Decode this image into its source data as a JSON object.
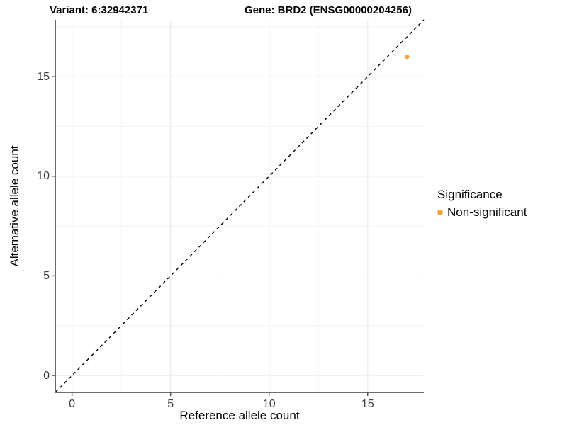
{
  "title": {
    "left": "Variant: 6:32942371",
    "right": "Gene: BRD2 (ENSG00000204256)"
  },
  "chart_data": {
    "type": "scatter",
    "xlabel": "Reference allele count",
    "ylabel": "Alternative allele count",
    "xlim": [
      -0.85,
      17.85
    ],
    "ylim": [
      -0.85,
      17.85
    ],
    "xticks": [
      0,
      5,
      10,
      15
    ],
    "yticks": [
      0,
      5,
      10,
      15
    ],
    "minor_ticks_x": [
      2.5,
      7.5,
      12.5,
      17.5
    ],
    "minor_ticks_y": [
      2.5,
      7.5,
      12.5,
      17.5
    ],
    "grid": true,
    "points": [
      {
        "x": 17,
        "y": 16,
        "series": "Non-significant"
      }
    ],
    "reference_line": {
      "type": "identity y=x",
      "style": "dashed",
      "color": "#000000"
    },
    "legend": {
      "title": "Significance",
      "position": "right",
      "items": [
        {
          "label": "Non-significant",
          "color": "#FAA43A"
        }
      ]
    },
    "colors": {
      "point": "#FAA43A",
      "axis_line": "#595959",
      "tick_mark": "#4d4d4d",
      "grid_major": "#EBEBEB",
      "grid_minor": "#F4F4F4",
      "background": "#FFFFFF"
    }
  }
}
